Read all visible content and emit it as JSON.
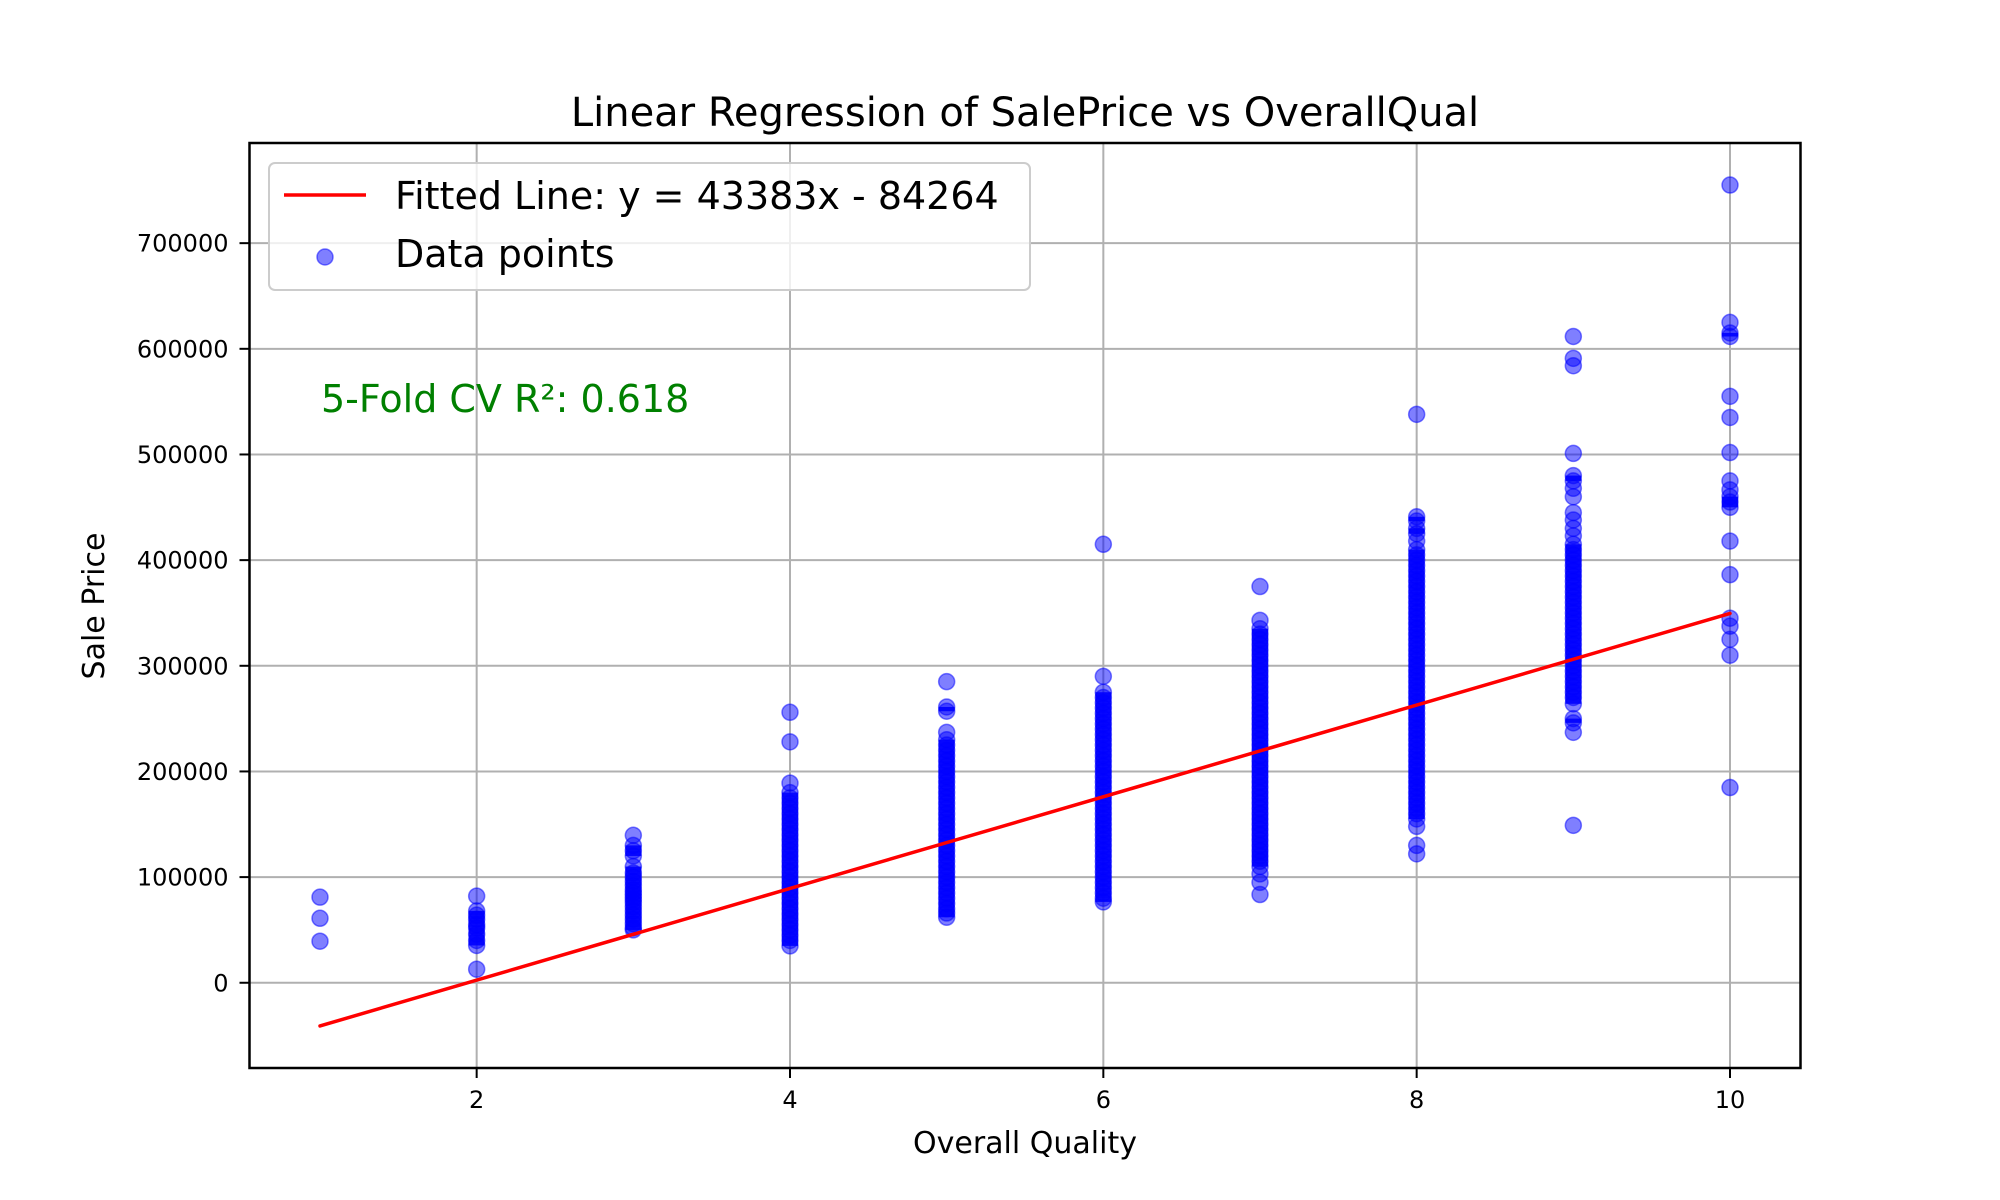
{
  "chart_data": {
    "type": "scatter",
    "title": "Linear Regression of SalePrice vs OverallQual",
    "xlabel": "Overall Quality",
    "ylabel": "Sale Price",
    "xlim": [
      0.55,
      10.45
    ],
    "ylim": [
      -80675,
      794794
    ],
    "grid": true,
    "x_ticks": [
      2,
      4,
      6,
      8,
      10
    ],
    "x_tick_labels": [
      "2",
      "4",
      "6",
      "8",
      "10"
    ],
    "y_ticks": [
      0,
      100000,
      200000,
      300000,
      400000,
      500000,
      600000,
      700000
    ],
    "y_tick_labels": [
      "0",
      "100000",
      "200000",
      "300000",
      "400000",
      "500000",
      "600000",
      "700000"
    ],
    "legend": {
      "placement": "upper-left",
      "entries": [
        {
          "label": "Fitted Line: y = 43383x - 84264",
          "kind": "line",
          "color": "#ff0000"
        },
        {
          "label": "Data points",
          "kind": "marker",
          "color": "#0000ff"
        }
      ]
    },
    "annotation": {
      "text": "5-Fold CV R²: 0.618",
      "color": "#008000",
      "x": 1,
      "y": 550000
    },
    "fitted_line": {
      "slope": 43383,
      "intercept": -84264,
      "x_range": [
        1,
        10
      ],
      "color": "#ff0000"
    },
    "series": [
      {
        "name": "Data points",
        "color": "#0000ff",
        "alpha": 0.5,
        "points": [
          {
            "x": 1,
            "values": [
              81000,
              61000,
              39300
            ]
          },
          {
            "x": 2,
            "values": [
              82000,
              68000,
              64000,
              60000,
              55000,
              52000,
              46000,
              40000,
              35300,
              12789
            ]
          },
          {
            "x": 3,
            "values": [
              139600,
              130000,
              125000,
              120000,
              110000,
              104000,
              100000,
              96000,
              92000,
              88000,
              85000,
              82000,
              79000,
              76000,
              72000,
              68000,
              64000,
              60000,
              56000,
              52000,
              50000
            ]
          },
          {
            "x": 4,
            "values": [
              256000,
              228000,
              189000,
              180000,
              175000,
              170000,
              165000,
              160000,
              155000,
              150000,
              145000,
              140000,
              135000,
              130000,
              125000,
              120000,
              115000,
              110000,
              105000,
              100000,
              95000,
              90000,
              85000,
              80000,
              75000,
              70000,
              65000,
              60000,
              55000,
              50000,
              45000,
              40000,
              34900
            ]
          },
          {
            "x": 5,
            "values": [
              285000,
              261000,
              257000,
              237000,
              230000,
              225000,
              220000,
              215000,
              210000,
              205000,
              200000,
              195000,
              190000,
              185000,
              180000,
              175000,
              170000,
              165000,
              160000,
              155000,
              150000,
              145000,
              140000,
              135000,
              130000,
              125000,
              120000,
              115000,
              110000,
              105000,
              100000,
              95000,
              90000,
              85000,
              80000,
              75000,
              70000,
              66000,
              62000
            ]
          },
          {
            "x": 6,
            "values": [
              415000,
              290000,
              275000,
              270000,
              265000,
              260000,
              255000,
              250000,
              245000,
              240000,
              235000,
              230000,
              225000,
              220000,
              215000,
              210000,
              205000,
              200000,
              195000,
              190000,
              185000,
              180000,
              175000,
              170000,
              165000,
              160000,
              155000,
              150000,
              145000,
              140000,
              135000,
              130000,
              125000,
              120000,
              115000,
              110000,
              105000,
              100000,
              95000,
              90000,
              85000,
              80000,
              76500
            ]
          },
          {
            "x": 7,
            "values": [
              375000,
              343000,
              335000,
              330000,
              325000,
              320000,
              315000,
              310000,
              305000,
              300000,
              295000,
              290000,
              285000,
              280000,
              275000,
              270000,
              265000,
              260000,
              255000,
              250000,
              245000,
              240000,
              235000,
              230000,
              225000,
              220000,
              215000,
              210000,
              205000,
              200000,
              195000,
              190000,
              185000,
              180000,
              175000,
              170000,
              165000,
              160000,
              155000,
              150000,
              145000,
              140000,
              135000,
              130000,
              125000,
              120000,
              115000,
              110000,
              103000,
              95000,
              83500
            ]
          },
          {
            "x": 8,
            "values": [
              538000,
              441000,
              437000,
              430000,
              425000,
              418000,
              410000,
              405000,
              400000,
              395000,
              390000,
              385000,
              380000,
              375000,
              370000,
              365000,
              360000,
              355000,
              350000,
              345000,
              340000,
              335000,
              330000,
              325000,
              320000,
              315000,
              310000,
              305000,
              300000,
              295000,
              290000,
              285000,
              280000,
              275000,
              270000,
              265000,
              260000,
              255000,
              250000,
              245000,
              240000,
              235000,
              230000,
              225000,
              220000,
              215000,
              210000,
              205000,
              200000,
              195000,
              190000,
              185000,
              180000,
              175000,
              170000,
              165000,
              160000,
              155000,
              148000,
              130000,
              122000
            ]
          },
          {
            "x": 9,
            "values": [
              611657,
              591000,
              584000,
              501000,
              480000,
              475000,
              468000,
              460000,
              445000,
              438000,
              430000,
              423000,
              415000,
              410000,
              405000,
              400000,
              395000,
              390000,
              385000,
              380000,
              375000,
              370000,
              365000,
              360000,
              355000,
              350000,
              345000,
              340000,
              335000,
              330000,
              325000,
              320000,
              315000,
              310000,
              305000,
              300000,
              295000,
              290000,
              285000,
              280000,
              275000,
              270000,
              264000,
              250000,
              246000,
              237000,
              149000
            ]
          },
          {
            "x": 10,
            "values": [
              755000,
              625000,
              615000,
              611657,
              555000,
              535000,
              501837,
              475000,
              466500,
              460000,
              455000,
              450000,
              418000,
              386250,
              345000,
              337500,
              325000,
              310000,
              184750
            ]
          }
        ]
      }
    ]
  }
}
